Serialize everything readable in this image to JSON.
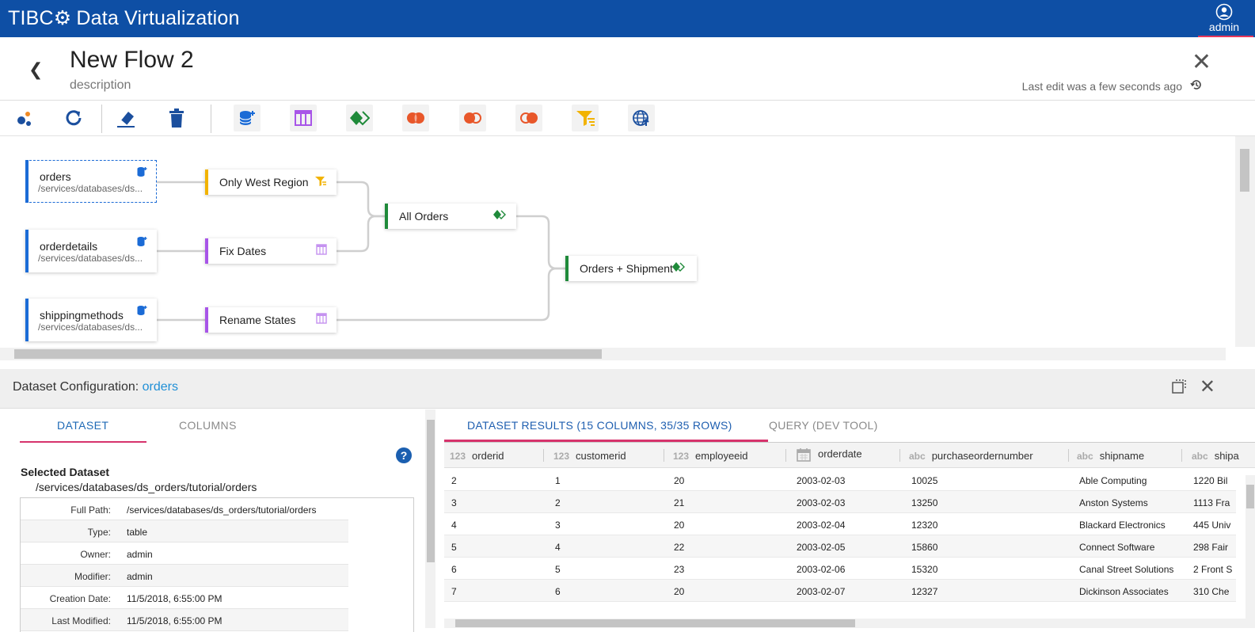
{
  "app": {
    "brand_tibco": "TIBC⚙",
    "brand_product": "Data Virtualization",
    "user": "admin"
  },
  "flow": {
    "title": "New Flow 2",
    "description": "description",
    "last_edit": "Last edit was a few seconds ago"
  },
  "toolbar": {
    "icons": [
      "auto-layout-icon",
      "refresh-icon",
      "clear-icon",
      "delete-icon",
      "add-dataset-icon",
      "edit-columns-icon",
      "union-icon",
      "join-icon",
      "left-join-icon",
      "right-join-icon",
      "filter-icon",
      "publish-icon"
    ]
  },
  "nodes": {
    "orders": {
      "name": "orders",
      "path": "/services/databases/ds..."
    },
    "orderdetails": {
      "name": "orderdetails",
      "path": "/services/databases/ds..."
    },
    "shippingmethods": {
      "name": "shippingmethods",
      "path": "/services/databases/ds..."
    },
    "only_west": {
      "name": "Only West Region"
    },
    "fix_dates": {
      "name": "Fix Dates"
    },
    "rename_states": {
      "name": "Rename States"
    },
    "all_orders": {
      "name": "All Orders"
    },
    "orders_shipment": {
      "name": "Orders + Shipment"
    }
  },
  "config": {
    "label": "Dataset Configuration:",
    "dataset_name": "orders"
  },
  "left_tabs": {
    "dataset": "DATASET",
    "columns": "COLUMNS"
  },
  "selected": {
    "label": "Selected Dataset",
    "path": "/services/databases/ds_orders/tutorial/orders",
    "help": "?"
  },
  "properties": [
    {
      "key": "Full Path:",
      "value": "/services/databases/ds_orders/tutorial/orders"
    },
    {
      "key": "Type:",
      "value": "table"
    },
    {
      "key": "Owner:",
      "value": "admin"
    },
    {
      "key": "Modifier:",
      "value": "admin"
    },
    {
      "key": "Creation Date:",
      "value": "11/5/2018, 6:55:00 PM"
    },
    {
      "key": "Last Modified:",
      "value": "11/5/2018, 6:55:00 PM"
    }
  ],
  "right_tabs": {
    "results": "DATASET RESULTS (15 COLUMNS, 35/35 ROWS)",
    "query": "QUERY (DEV TOOL)"
  },
  "table": {
    "columns": [
      {
        "type": "123",
        "name": "orderid"
      },
      {
        "type": "123",
        "name": "customerid"
      },
      {
        "type": "123",
        "name": "employeeid"
      },
      {
        "type": "date",
        "name": "orderdate"
      },
      {
        "type": "abc",
        "name": "purchaseordernumber"
      },
      {
        "type": "abc",
        "name": "shipname"
      },
      {
        "type": "abc",
        "name": "shipa"
      }
    ],
    "rows": [
      [
        "2",
        "1",
        "20",
        "2003-02-03",
        "10025",
        "Able Computing",
        "1220 Bil"
      ],
      [
        "3",
        "2",
        "21",
        "2003-02-03",
        "13250",
        "Anston Systems",
        "1113 Fra"
      ],
      [
        "4",
        "3",
        "20",
        "2003-02-04",
        "12320",
        "Blackard Electronics",
        "445 Univ"
      ],
      [
        "5",
        "4",
        "22",
        "2003-02-05",
        "15860",
        "Connect Software",
        "298 Fair"
      ],
      [
        "6",
        "5",
        "23",
        "2003-02-06",
        "15320",
        "Canal Street Solutions",
        "2 Front S"
      ],
      [
        "7",
        "6",
        "20",
        "2003-02-07",
        "12327",
        "Dickinson Associates",
        "310 Che"
      ]
    ]
  },
  "colors": {
    "brand_blue": "#0e4fa5",
    "accent_pink": "#d6336c",
    "link_blue": "#1f8fd6",
    "source_bar": "#1b6bd6",
    "filter_bar": "#f2b300",
    "transform_bar": "#a855e8",
    "join_bar": "#1f8a3a"
  }
}
